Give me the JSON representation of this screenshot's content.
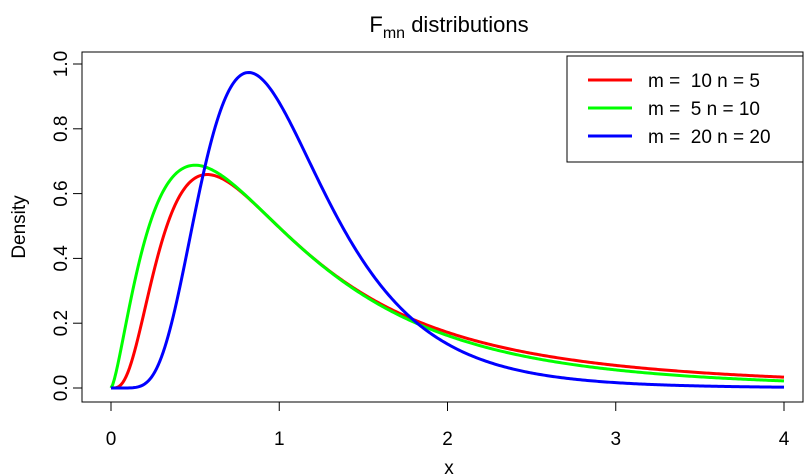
{
  "chart_data": {
    "type": "line",
    "title": {
      "main": "F",
      "sub": "mn",
      "rest": " distributions"
    },
    "xlabel": "x",
    "ylabel": "Density",
    "xlim": [
      0,
      4
    ],
    "ylim": [
      0,
      1
    ],
    "xticks": [
      "0",
      "1",
      "2",
      "3",
      "4"
    ],
    "yticks": [
      "0.0",
      "0.2",
      "0.4",
      "0.6",
      "0.8",
      "1.0"
    ],
    "grid": false,
    "legend_position": "top-right",
    "series": [
      {
        "name": "m =  10 n = 5",
        "m": 10,
        "n": 5,
        "color": "#ff0000"
      },
      {
        "name": "m =  5 n = 10",
        "m": 5,
        "n": 10,
        "color": "#00ff00"
      },
      {
        "name": "m =  20 n = 20",
        "m": 20,
        "n": 20,
        "color": "#0000ff"
      }
    ]
  }
}
